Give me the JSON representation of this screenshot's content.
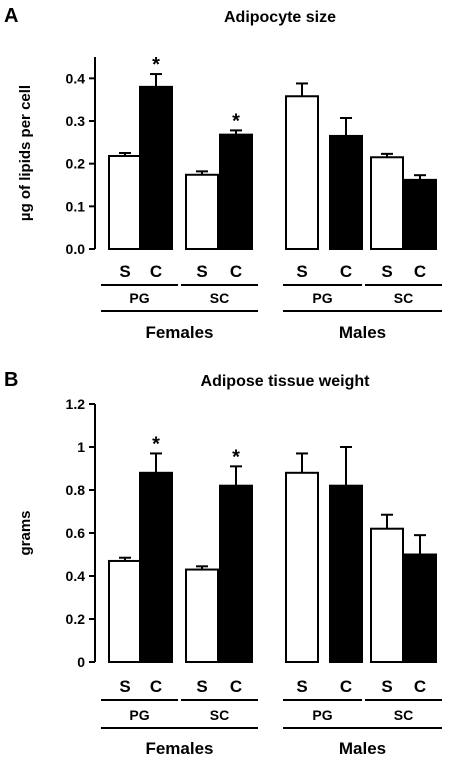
{
  "chart_data": [
    {
      "type": "bar",
      "panel": "A",
      "title": "Adipocyte size",
      "ylabel": "µg of lipids per cell",
      "xlabel": "",
      "ylim": [
        0,
        0.45
      ],
      "yticks": [
        0.0,
        0.1,
        0.2,
        0.3,
        0.4
      ],
      "ytick_labels": [
        "0.0",
        "0.1",
        "0.2",
        "0.3",
        "0.4"
      ],
      "grid": false,
      "groups": [
        {
          "sex": "Females",
          "depot": "PG",
          "labels": [
            "S",
            "C"
          ],
          "values": [
            0.218,
            0.38
          ],
          "errors": [
            0.007,
            0.03
          ],
          "significant": [
            false,
            true
          ],
          "fill": [
            "#ffffff",
            "#000000"
          ]
        },
        {
          "sex": "Females",
          "depot": "SC",
          "labels": [
            "S",
            "C"
          ],
          "values": [
            0.174,
            0.268
          ],
          "errors": [
            0.008,
            0.01
          ],
          "significant": [
            false,
            true
          ],
          "fill": [
            "#ffffff",
            "#000000"
          ]
        },
        {
          "sex": "Males",
          "depot": "PG",
          "labels": [
            "S",
            "C"
          ],
          "values": [
            0.358,
            0.265
          ],
          "errors": [
            0.03,
            0.042
          ],
          "significant": [
            false,
            false
          ],
          "fill": [
            "#ffffff",
            "#000000"
          ]
        },
        {
          "sex": "Males",
          "depot": "SC",
          "labels": [
            "S",
            "C"
          ],
          "values": [
            0.215,
            0.162
          ],
          "errors": [
            0.008,
            0.011
          ],
          "significant": [
            false,
            false
          ],
          "fill": [
            "#ffffff",
            "#000000"
          ]
        }
      ],
      "significance_marker": "*"
    },
    {
      "type": "bar",
      "panel": "B",
      "title": "Adipose tissue weight",
      "ylabel": "grams",
      "xlabel": "",
      "ylim": [
        0,
        1.2
      ],
      "yticks": [
        0,
        0.2,
        0.4,
        0.6,
        0.8,
        1.0,
        1.2
      ],
      "ytick_labels": [
        "0",
        "0.2",
        "0.4",
        "0.6",
        "0.8",
        "1",
        "1.2"
      ],
      "grid": false,
      "groups": [
        {
          "sex": "Females",
          "depot": "PG",
          "labels": [
            "S",
            "C"
          ],
          "values": [
            0.47,
            0.88
          ],
          "errors": [
            0.015,
            0.09
          ],
          "significant": [
            false,
            true
          ],
          "fill": [
            "#ffffff",
            "#000000"
          ]
        },
        {
          "sex": "Females",
          "depot": "SC",
          "labels": [
            "S",
            "C"
          ],
          "values": [
            0.43,
            0.82
          ],
          "errors": [
            0.015,
            0.09
          ],
          "significant": [
            false,
            true
          ],
          "fill": [
            "#ffffff",
            "#000000"
          ]
        },
        {
          "sex": "Males",
          "depot": "PG",
          "labels": [
            "S",
            "C"
          ],
          "values": [
            0.88,
            0.82
          ],
          "errors": [
            0.09,
            0.18
          ],
          "significant": [
            false,
            false
          ],
          "fill": [
            "#ffffff",
            "#000000"
          ]
        },
        {
          "sex": "Males",
          "depot": "SC",
          "labels": [
            "S",
            "C"
          ],
          "values": [
            0.62,
            0.5
          ],
          "errors": [
            0.065,
            0.09
          ],
          "significant": [
            false,
            false
          ],
          "fill": [
            "#ffffff",
            "#000000"
          ]
        }
      ],
      "significance_marker": "*"
    }
  ]
}
